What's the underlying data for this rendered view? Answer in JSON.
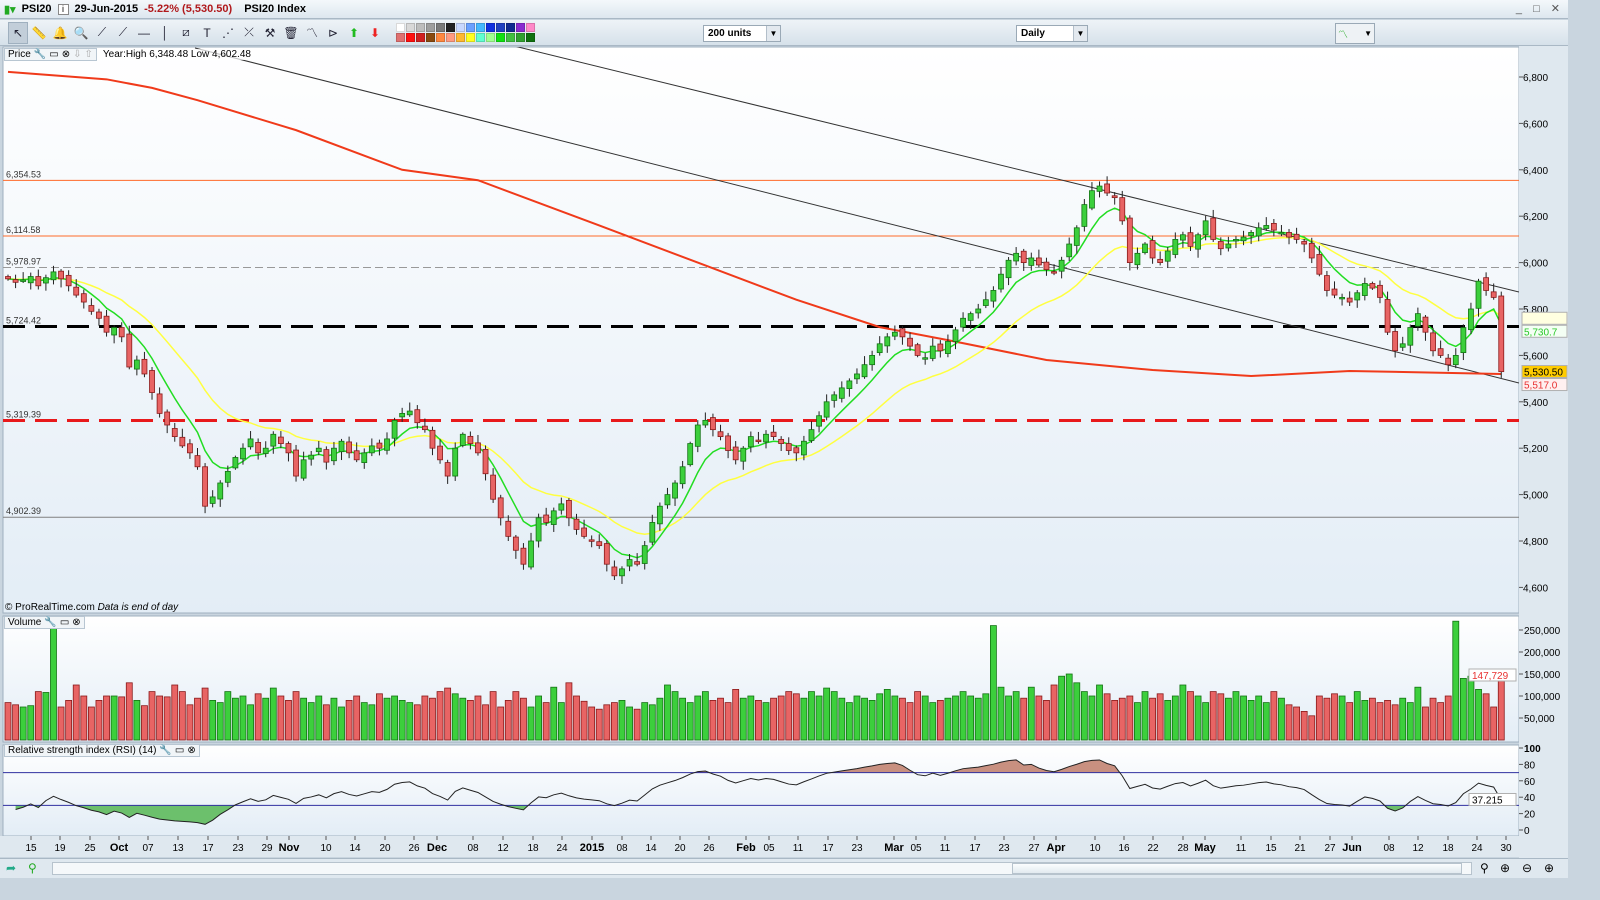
{
  "titlebar": {
    "symbol": "PSI20",
    "date": "29-Jun-2015",
    "change": "-5.22% (5,530.50)",
    "name": "PSI20 Index",
    "window_buttons": "_ □ ✕"
  },
  "toolbar": {
    "tools": [
      {
        "icon": "pointer-icon",
        "glyph": "↖"
      },
      {
        "icon": "ruler-icon",
        "glyph": "📏"
      },
      {
        "icon": "alarm-bell-icon",
        "glyph": "🔔"
      },
      {
        "icon": "zoom-icon",
        "glyph": "🔍"
      },
      {
        "icon": "segment-icon",
        "glyph": "⟋"
      },
      {
        "icon": "line-icon",
        "glyph": "⟋"
      },
      {
        "icon": "horizontal-line-icon",
        "glyph": "—"
      },
      {
        "icon": "vertical-line-icon",
        "glyph": "│"
      },
      {
        "icon": "channel-icon",
        "glyph": "⧄"
      },
      {
        "icon": "text-icon",
        "glyph": "T"
      },
      {
        "icon": "fibonacci-icon",
        "glyph": "⋰"
      },
      {
        "icon": "gann-icon",
        "glyph": "⤫"
      },
      {
        "icon": "tools-icon",
        "glyph": "⚒"
      },
      {
        "icon": "trash-icon",
        "glyph": "🗑"
      },
      {
        "icon": "pattern-icon",
        "glyph": "〽"
      },
      {
        "icon": "triangle-icon",
        "glyph": "⊳"
      },
      {
        "icon": "up-arrow-icon",
        "glyph": "⬆"
      },
      {
        "icon": "down-arrow-icon",
        "glyph": "⬇"
      }
    ],
    "swatches": [
      "#ffffff",
      "#d8d8d8",
      "#bdbdbd",
      "#9e9e9e",
      "#7a7a7a",
      "#222222",
      "#c8d8ff",
      "#6aa0ff",
      "#44b8ff",
      "#1030e0",
      "#2040c0",
      "#102a90",
      "#8a2ad0",
      "#ff88c8",
      "#e07070",
      "#ff1010",
      "#d02020",
      "#8a4a10",
      "#ff8840",
      "#ff9a80",
      "#ffb830",
      "#ffff20",
      "#60ffd0",
      "#a0ff90",
      "#10e010",
      "#40c040",
      "#30a030",
      "#107010"
    ],
    "units_select": "200 units",
    "period_select": "Daily"
  },
  "price_panel": {
    "label": "Price",
    "year_info": "Year:High 6,348.48 Low 4,602.48",
    "copyright": "© ProRealTime.com",
    "note": "Data is end of day",
    "axis_ticks": [
      "6,800",
      "6,600",
      "6,400",
      "6,200",
      "6,000",
      "5,800",
      "5,600",
      "5,400",
      "5,200",
      "5,000",
      "4,800",
      "4,600"
    ],
    "levels": [
      {
        "value": 6354.53,
        "label": "6,354.53",
        "color": "#ff6a2a",
        "style": "solid"
      },
      {
        "value": 6114.58,
        "label": "6,114.58",
        "color": "#ff6a2a",
        "style": "solid"
      },
      {
        "value": 5978.97,
        "label": "5,978.97",
        "color": "#999999",
        "style": "dashed"
      },
      {
        "value": 5724.42,
        "label": "5,724.42",
        "color": "#000000",
        "style": "thick-dashed"
      },
      {
        "value": 5319.39,
        "label": "5,319.39",
        "color": "#e8191b",
        "style": "thick-dashed"
      },
      {
        "value": 4902.39,
        "label": "4,902.39",
        "color": "#808080",
        "style": "solid"
      }
    ],
    "tags": [
      {
        "value": 5760,
        "label": "",
        "bg": "#ffffe0",
        "fg": "#e0d000"
      },
      {
        "value": 5730.7,
        "label": "5,730.7",
        "bg": "#f4fff4",
        "fg": "#2ac82a"
      },
      {
        "value": 5530.5,
        "label": "5,530.50",
        "bg": "#ffcc00",
        "fg": "#000000"
      },
      {
        "value": 5517.0,
        "label": "5,517.0",
        "bg": "#fff0f0",
        "fg": "#e83030"
      }
    ]
  },
  "volume_panel": {
    "label": "Volume",
    "axis_ticks": [
      "250,000",
      "200,000",
      "150,000",
      "100,000",
      "50,000"
    ],
    "last_label": "147,729"
  },
  "rsi_panel": {
    "label": "Relative strength index (RSI) (14)",
    "axis_ticks": [
      "100",
      "80",
      "60",
      "40",
      "20",
      "0"
    ],
    "last_label": "37.215",
    "upper": 70,
    "lower": 30
  },
  "x_axis": [
    {
      "l": "15"
    },
    {
      "l": "19"
    },
    {
      "l": "25"
    },
    {
      "l": "Oct",
      "b": 1
    },
    {
      "l": "07"
    },
    {
      "l": "13"
    },
    {
      "l": "17"
    },
    {
      "l": "23"
    },
    {
      "l": "29"
    },
    {
      "l": "Nov",
      "b": 1
    },
    {
      "l": "10"
    },
    {
      "l": "14"
    },
    {
      "l": "20"
    },
    {
      "l": "26"
    },
    {
      "l": "Dec",
      "b": 1
    },
    {
      "l": "08"
    },
    {
      "l": "12"
    },
    {
      "l": "18"
    },
    {
      "l": "24"
    },
    {
      "l": "2015",
      "b": 1
    },
    {
      "l": "08"
    },
    {
      "l": "14"
    },
    {
      "l": "20"
    },
    {
      "l": "26"
    },
    {
      "l": "Feb",
      "b": 1
    },
    {
      "l": "05"
    },
    {
      "l": "11"
    },
    {
      "l": "17"
    },
    {
      "l": "23"
    },
    {
      "l": "Mar",
      "b": 1
    },
    {
      "l": "05"
    },
    {
      "l": "11"
    },
    {
      "l": "17"
    },
    {
      "l": "23"
    },
    {
      "l": "27"
    },
    {
      "l": "Apr",
      "b": 1
    },
    {
      "l": "10"
    },
    {
      "l": "16"
    },
    {
      "l": "22"
    },
    {
      "l": "28"
    },
    {
      "l": "May",
      "b": 1
    },
    {
      "l": "11"
    },
    {
      "l": "15"
    },
    {
      "l": "21"
    },
    {
      "l": "27"
    },
    {
      "l": "Jun",
      "b": 1
    },
    {
      "l": "08"
    },
    {
      "l": "12"
    },
    {
      "l": "18"
    },
    {
      "l": "24"
    },
    {
      "l": "30"
    }
  ],
  "chart_data": {
    "type": "candlestick",
    "ylim": [
      4550,
      6900
    ],
    "colors": {
      "up": "#3ccf3c",
      "down": "#e86464",
      "ema_fast": "#22dd22",
      "ema_slow": "#ffff40",
      "ma_long": "#f03a1a",
      "trendline": "#333333"
    },
    "close": [
      5930,
      5915,
      5925,
      5940,
      5900,
      5935,
      5960,
      5930,
      5900,
      5860,
      5830,
      5790,
      5760,
      5700,
      5720,
      5680,
      5550,
      5580,
      5520,
      5440,
      5350,
      5300,
      5250,
      5210,
      5180,
      5120,
      4950,
      4990,
      5050,
      5100,
      5160,
      5200,
      5240,
      5180,
      5200,
      5260,
      5220,
      5180,
      5080,
      5150,
      5170,
      5200,
      5140,
      5200,
      5230,
      5180,
      5150,
      5180,
      5210,
      5200,
      5240,
      5320,
      5350,
      5360,
      5310,
      5280,
      5200,
      5150,
      5080,
      5200,
      5260,
      5220,
      5180,
      5090,
      4980,
      4900,
      4820,
      4760,
      4700,
      4800,
      4900,
      4880,
      4930,
      4960,
      4900,
      4850,
      4820,
      4800,
      4780,
      4700,
      4650,
      4680,
      4720,
      4700,
      4780,
      4880,
      4950,
      5000,
      5050,
      5120,
      5220,
      5300,
      5320,
      5280,
      5250,
      5190,
      5150,
      5200,
      5250,
      5230,
      5260,
      5250,
      5220,
      5190,
      5180,
      5230,
      5280,
      5340,
      5400,
      5430,
      5460,
      5490,
      5520,
      5560,
      5600,
      5650,
      5680,
      5700,
      5680,
      5640,
      5600,
      5590,
      5640,
      5620,
      5660,
      5710,
      5760,
      5780,
      5800,
      5840,
      5880,
      5950,
      6010,
      6040,
      6000,
      6020,
      5990,
      5970,
      5960,
      6010,
      6080,
      6150,
      6250,
      6310,
      6330,
      6300,
      6280,
      6180,
      6000,
      6040,
      6080,
      6020,
      6000,
      6050,
      6100,
      6120,
      6070,
      6120,
      6180,
      6100,
      6060,
      6080,
      6100,
      6110,
      6130,
      6150,
      6160,
      6140,
      6130,
      6110,
      6100,
      6080,
      6020,
      5950,
      5880,
      5860,
      5850,
      5830,
      5870,
      5910,
      5890,
      5850,
      5700,
      5620,
      5650,
      5720,
      5780,
      5700,
      5620,
      5600,
      5560,
      5600,
      5720,
      5800,
      5920,
      5880,
      5850,
      5530
    ],
    "volume": [
      85000,
      80000,
      75000,
      78000,
      110000,
      108000,
      260000,
      75000,
      90000,
      125000,
      100000,
      75000,
      90000,
      100000,
      100000,
      98000,
      130000,
      90000,
      78000,
      110000,
      100000,
      98000,
      125000,
      110000,
      80000,
      95000,
      118000,
      90000,
      85000,
      110000,
      95000,
      100000,
      80000,
      105000,
      95000,
      118000,
      100000,
      90000,
      110000,
      95000,
      85000,
      100000,
      80000,
      95000,
      75000,
      90000,
      100000,
      85000,
      80000,
      105000,
      95000,
      100000,
      90000,
      85000,
      80000,
      100000,
      95000,
      110000,
      118000,
      105000,
      95000,
      90000,
      100000,
      80000,
      110000,
      75000,
      90000,
      110000,
      95000,
      75000,
      100000,
      85000,
      120000,
      85000,
      130000,
      100000,
      88000,
      75000,
      70000,
      80000,
      85000,
      90000,
      75000,
      70000,
      85000,
      80000,
      95000,
      125000,
      110000,
      95000,
      85000,
      100000,
      110000,
      90000,
      95000,
      85000,
      115000,
      95000,
      100000,
      90000,
      85000,
      95000,
      100000,
      110000,
      105000,
      95000,
      110000,
      100000,
      118000,
      110000,
      95000,
      85000,
      100000,
      95000,
      90000,
      105000,
      115000,
      100000,
      95000,
      85000,
      110000,
      100000,
      85000,
      90000,
      95000,
      100000,
      110000,
      100000,
      95000,
      105000,
      260000,
      120000,
      100000,
      110000,
      95000,
      120000,
      100000,
      90000,
      125000,
      145000,
      150000,
      130000,
      110000,
      100000,
      125000,
      105000,
      90000,
      95000,
      100000,
      85000,
      110000,
      95000,
      105000,
      90000,
      100000,
      125000,
      110000,
      100000,
      85000,
      110000,
      105000,
      95000,
      110000,
      100000,
      90000,
      100000,
      85000,
      110000,
      95000,
      80000,
      75000,
      65000,
      55000,
      100000,
      95000,
      105000,
      100000,
      85000,
      110000,
      90000,
      95000,
      85000,
      90000,
      80000,
      95000,
      85000,
      120000,
      75000,
      95000,
      85000,
      100000,
      270000,
      140000,
      145000,
      115000,
      105000,
      75000,
      145000
    ],
    "ma_long": [
      [
        0,
        6822
      ],
      [
        13,
        6790
      ],
      [
        19,
        6753
      ],
      [
        25,
        6700
      ],
      [
        38,
        6571
      ],
      [
        52,
        6400
      ],
      [
        62,
        6355
      ],
      [
        78,
        6160
      ],
      [
        91,
        6000
      ],
      [
        104,
        5840
      ],
      [
        115,
        5722
      ],
      [
        124,
        5666
      ],
      [
        137,
        5580
      ],
      [
        151,
        5537
      ],
      [
        164,
        5511
      ],
      [
        177,
        5533
      ],
      [
        197,
        5520
      ]
    ],
    "volume_ylim": [
      0,
      280000
    ],
    "rsi_ylim": [
      0,
      100
    ]
  }
}
